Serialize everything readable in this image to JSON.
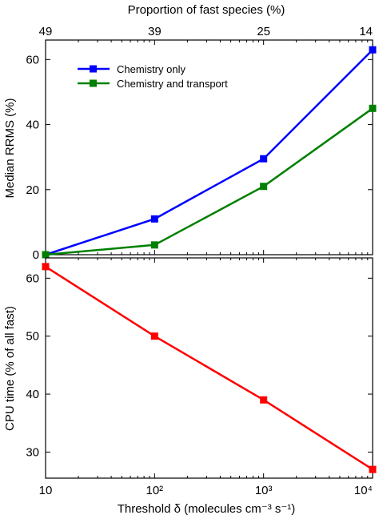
{
  "chart_data": [
    {
      "type": "line",
      "panel": "top",
      "x": [
        10,
        100,
        1000,
        10000
      ],
      "x_scale": "log",
      "xlim": [
        10,
        10000
      ],
      "ylim": [
        0,
        66
      ],
      "yticks": [
        0,
        20,
        40,
        60
      ],
      "ytick_labels": [
        "0",
        "20",
        "40",
        "60"
      ],
      "ylabel": "Median RRMS (%)",
      "top_axis": {
        "label": "Proportion of fast species (%)",
        "tick_labels": [
          "49",
          "39",
          "25",
          "14"
        ]
      },
      "legend_position": "top-left",
      "grid": false,
      "series": [
        {
          "name": "Chemistry only",
          "color": "#0000ff",
          "values": [
            0,
            11,
            29.5,
            63
          ]
        },
        {
          "name": "Chemistry and transport",
          "color": "#008000",
          "values": [
            0,
            3,
            21,
            45
          ]
        }
      ]
    },
    {
      "type": "line",
      "panel": "bottom",
      "x": [
        10,
        100,
        1000,
        10000
      ],
      "x_scale": "log",
      "xlim": [
        10,
        10000
      ],
      "ylim": [
        25.5,
        63.5
      ],
      "yticks": [
        30,
        40,
        50,
        60
      ],
      "ytick_labels": [
        "30",
        "40",
        "50",
        "60"
      ],
      "ylabel": "CPU time (% of all fast)",
      "xlabel": "Threshold δ (molecules cm⁻³ s⁻¹)",
      "xtick_labels": [
        "10",
        "10²",
        "10³",
        "10⁴"
      ],
      "grid": false,
      "series": [
        {
          "color": "#ff0000",
          "values": [
            62,
            50,
            39,
            27
          ]
        }
      ]
    }
  ]
}
